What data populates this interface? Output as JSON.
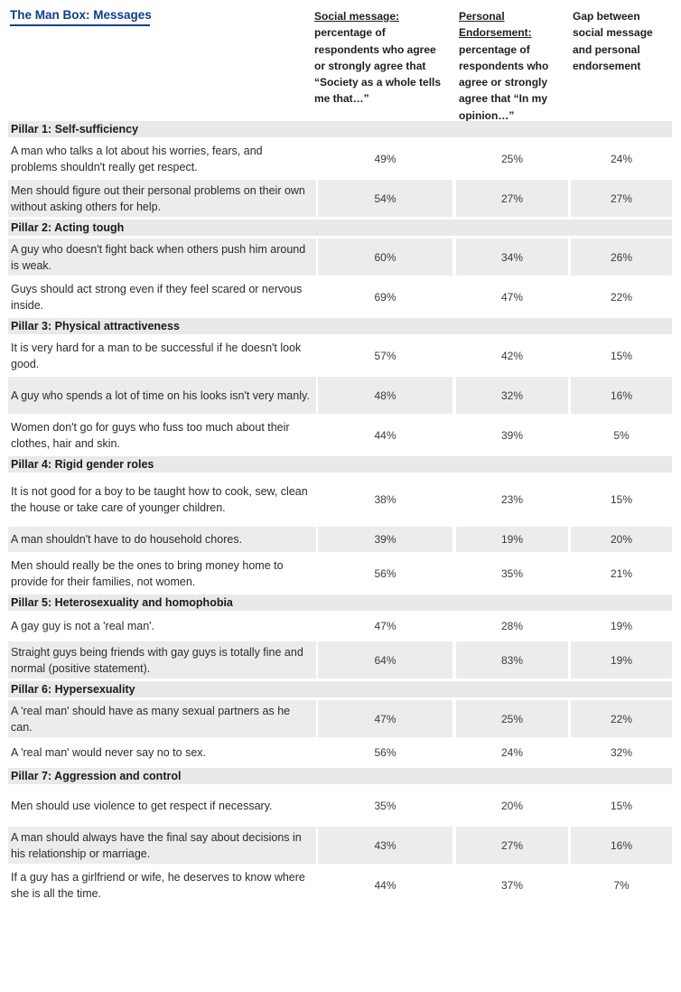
{
  "title": "The Man Box: Messages",
  "columns": {
    "social": {
      "underlined": "Social message:",
      "rest": "percentage of respondents who agree or strongly agree that “Society as a whole tells me that…”"
    },
    "personal": {
      "underlined": "Personal Endorsement:",
      "rest": "percentage of respondents who agree or strongly agree that “In my opinion…”"
    },
    "gap": {
      "text": "Gap between social message and personal endorsement"
    }
  },
  "pillars": [
    {
      "name": "Pillar 1: Self-sufficiency",
      "rows": [
        {
          "statement": "A man who talks a lot about his worries, fears, and problems shouldn't really get respect.",
          "social": "49%",
          "personal": "25%",
          "gap": "24%"
        },
        {
          "statement": "Men should figure out their personal problems on their own without asking others for help.",
          "social": "54%",
          "personal": "27%",
          "gap": "27%"
        }
      ]
    },
    {
      "name": "Pillar 2: Acting tough",
      "rows": [
        {
          "statement": "A guy who doesn't fight back when others push him around is weak.",
          "social": "60%",
          "personal": "34%",
          "gap": "26%"
        },
        {
          "statement": "Guys should act strong even if they feel scared or nervous inside.",
          "social": "69%",
          "personal": "47%",
          "gap": "22%"
        }
      ]
    },
    {
      "name": "Pillar 3: Physical attractiveness",
      "rows": [
        {
          "statement": "It is very hard for a man to be successful if he doesn't look good.",
          "social": "57%",
          "personal": "42%",
          "gap": "15%"
        },
        {
          "statement": "A guy who spends a lot of time on his looks isn't very manly.",
          "social": "48%",
          "personal": "32%",
          "gap": "16%"
        },
        {
          "statement": "Women don't go for guys who fuss too much about their clothes, hair and skin.",
          "social": "44%",
          "personal": "39%",
          "gap": "5%"
        }
      ]
    },
    {
      "name": "Pillar 4: Rigid gender roles",
      "rows": [
        {
          "statement": "It is not good for a boy to be taught how to cook, sew, clean the house or take care of younger children.",
          "social": "38%",
          "personal": "23%",
          "gap": "15%"
        },
        {
          "statement": "A man shouldn't have to do household chores.",
          "social": "39%",
          "personal": "19%",
          "gap": "20%"
        },
        {
          "statement": "Men should really be the ones to bring money home to provide for their families, not women.",
          "social": "56%",
          "personal": "35%",
          "gap": "21%"
        }
      ]
    },
    {
      "name": "Pillar 5: Heterosexuality and homophobia",
      "rows": [
        {
          "statement": "A gay guy is not a 'real man'.",
          "social": "47%",
          "personal": "28%",
          "gap": "19%"
        },
        {
          "statement": "Straight guys being friends with gay guys is totally fine and normal (positive statement).",
          "social": "64%",
          "personal": "83%",
          "gap": "19%"
        }
      ]
    },
    {
      "name": "Pillar 6: Hypersexuality",
      "rows": [
        {
          "statement": "A 'real man' should have as many sexual partners as he can.",
          "social": "47%",
          "personal": "25%",
          "gap": "22%"
        },
        {
          "statement": "A 'real man' would never say no to sex.",
          "social": "56%",
          "personal": "24%",
          "gap": "32%"
        }
      ]
    },
    {
      "name": "Pillar 7: Aggression and control",
      "rows": [
        {
          "statement": "Men should use violence to get respect if necessary.",
          "social": "35%",
          "personal": "20%",
          "gap": "15%"
        },
        {
          "statement": "A man should always have the final say about decisions in his relationship or marriage.",
          "social": "43%",
          "personal": "27%",
          "gap": "16%"
        },
        {
          "statement": "If a guy has a girlfriend or wife, he deserves to know where she is all the time.",
          "social": "44%",
          "personal": "37%",
          "gap": "7%"
        }
      ]
    }
  ]
}
